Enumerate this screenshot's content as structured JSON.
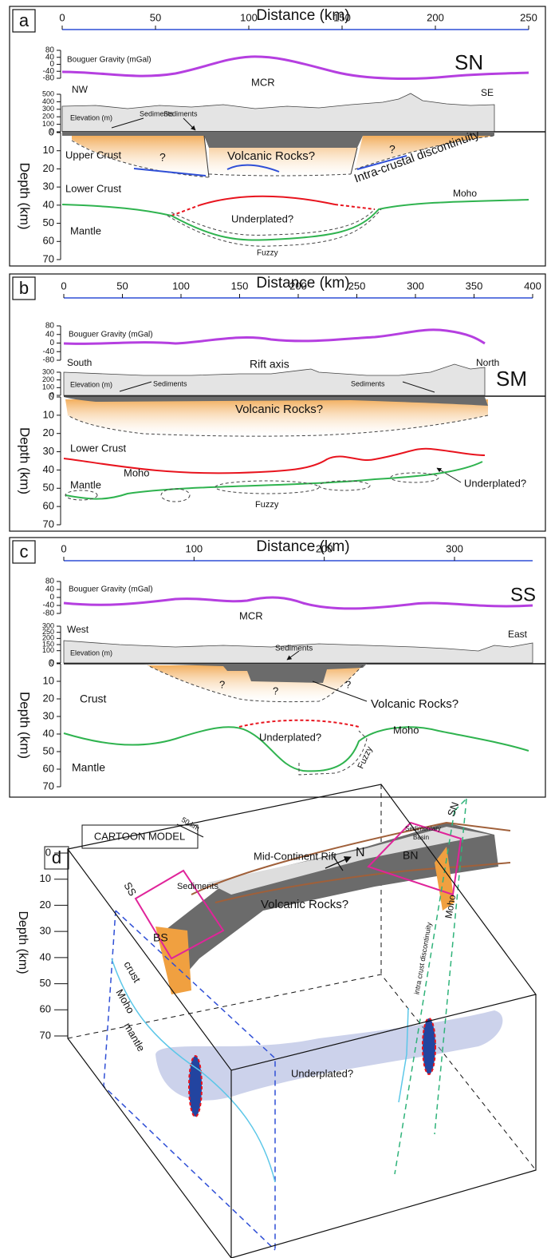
{
  "panels": [
    {
      "letter": "a",
      "x_title": "Distance (km)",
      "x_ticks": [
        0,
        50,
        100,
        150,
        200,
        250
      ],
      "gravity_label": "Bouguer Gravity (mGal)",
      "gravity_ticks": [
        80,
        40,
        0,
        -40,
        -80
      ],
      "elevation_label": "Elevation (m)",
      "elevation_ticks": [
        500,
        400,
        300,
        200,
        100,
        0
      ],
      "depth_label": "Depth (km)",
      "depth_ticks": [
        0,
        10,
        20,
        30,
        40,
        50,
        60,
        70
      ],
      "annotations": [
        "SN",
        "NW",
        "MCR",
        "SE",
        "Sediments",
        "Sediments",
        "Upper Crust",
        "?",
        "Volcanic Rocks?",
        "?",
        "Intra-crustal discontinuity",
        "Lower Crust",
        "Moho",
        "Mantle",
        "Underplated?",
        "Fuzzy"
      ]
    },
    {
      "letter": "b",
      "x_title": "Distance (km)",
      "x_ticks": [
        0,
        50,
        100,
        150,
        200,
        250,
        300,
        350,
        400
      ],
      "gravity_label": "Bouguer Gravity (mGal)",
      "gravity_ticks": [
        80,
        40,
        0,
        -40,
        -80
      ],
      "elevation_label": "Elevation (m)",
      "elevation_ticks": [
        300,
        200,
        100,
        0
      ],
      "depth_label": "Depth (km)",
      "depth_ticks": [
        0,
        10,
        20,
        30,
        40,
        50,
        60,
        70
      ],
      "annotations": [
        "South",
        "Rift axis",
        "North",
        "SM",
        "Sediments",
        "Sediments",
        "Volcanic Rocks?",
        "Lower Crust",
        "Underplated?",
        "Moho",
        "Mantle",
        "Fuzzy"
      ]
    },
    {
      "letter": "c",
      "x_title": "Distance (km)",
      "x_ticks": [
        0,
        100,
        200,
        300
      ],
      "gravity_label": "Bouguer Gravity (mGal)",
      "gravity_ticks": [
        80,
        40,
        0,
        -40,
        -80
      ],
      "elevation_label": "Elevation (m)",
      "elevation_ticks": [
        300,
        250,
        200,
        150,
        100,
        0
      ],
      "depth_label": "Depth (km)",
      "depth_ticks": [
        0,
        10,
        20,
        30,
        40,
        50,
        60,
        70
      ],
      "annotations": [
        "SS",
        "MCR",
        "West",
        "East",
        "Sediments",
        "?",
        "?",
        "?",
        "Volcanic Rocks?",
        "Crust",
        "Underplated?",
        "Moho",
        "Fuzzy",
        "Mantle"
      ]
    }
  ],
  "cartoon": {
    "letter": "d",
    "title": "CARTOON MODEL",
    "depth_label": "Depth (km)",
    "depth_ticks": [
      0,
      10,
      20,
      30,
      40,
      50,
      60,
      70
    ],
    "labels": [
      "N",
      "50 km",
      "SS",
      "SN",
      "Sediments",
      "BS",
      "Sedimentary",
      "Basin",
      "BN",
      "Mid-Continent Rift",
      "Volcanic Rocks?",
      "crust",
      "Moho",
      "mantle",
      "Underplated?",
      "intra crust discontinuity",
      "Moho"
    ]
  }
}
